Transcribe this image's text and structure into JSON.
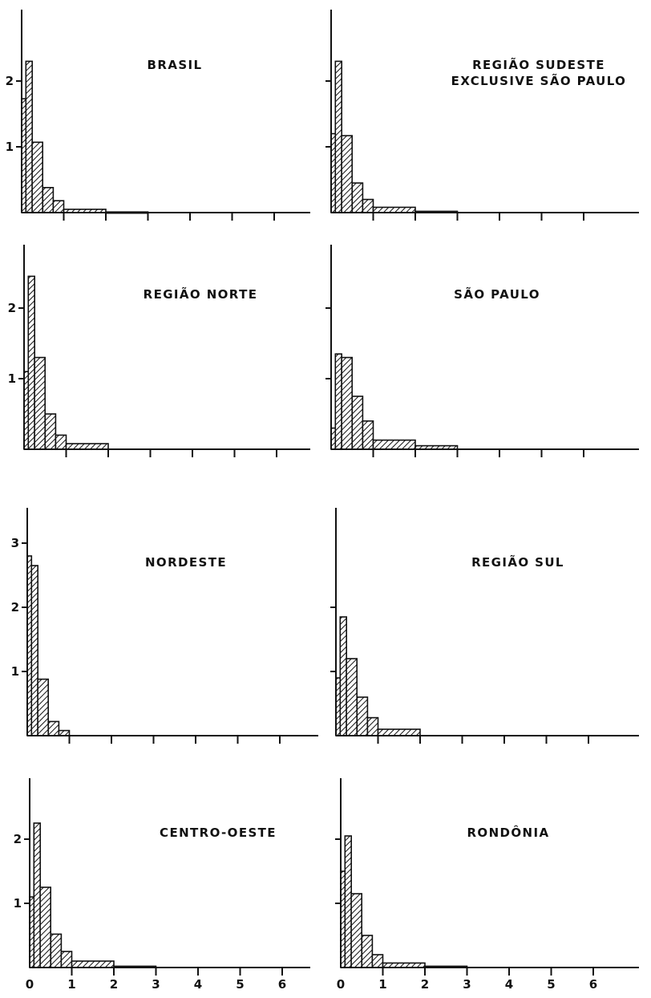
{
  "colors": {
    "ink": "#111111",
    "background": "#ffffff"
  },
  "chart_data": [
    {
      "type": "bar",
      "title_lines": [
        "BRASIL"
      ],
      "xlim": [
        0,
        7
      ],
      "ylim": [
        0,
        2.5
      ],
      "x_ticks": [
        0,
        1,
        2,
        3,
        4,
        5,
        6
      ],
      "x_tick_labels": [],
      "y_ticks": [
        1,
        2
      ],
      "y_tick_labels": [
        "1",
        "2"
      ],
      "bins": [
        {
          "x0": 0.0,
          "x1": 0.1,
          "value": 1.73
        },
        {
          "x0": 0.1,
          "x1": 0.25,
          "value": 2.3
        },
        {
          "x0": 0.25,
          "x1": 0.5,
          "value": 1.07
        },
        {
          "x0": 0.5,
          "x1": 0.75,
          "value": 0.38
        },
        {
          "x0": 0.75,
          "x1": 1.0,
          "value": 0.18
        },
        {
          "x0": 1.0,
          "x1": 2.0,
          "value": 0.05
        },
        {
          "x0": 2.0,
          "x1": 3.0,
          "value": 0.01
        }
      ]
    },
    {
      "type": "bar",
      "title_lines": [
        "REGIÃO SUDESTE",
        "EXCLUSIVE SÃO PAULO"
      ],
      "xlim": [
        0,
        7
      ],
      "ylim": [
        0,
        2.5
      ],
      "x_ticks": [
        0,
        1,
        2,
        3,
        4,
        5,
        6
      ],
      "x_tick_labels": [],
      "y_ticks": [
        1,
        2
      ],
      "y_tick_labels": [],
      "bins": [
        {
          "x0": 0.0,
          "x1": 0.1,
          "value": 1.2
        },
        {
          "x0": 0.1,
          "x1": 0.25,
          "value": 2.3
        },
        {
          "x0": 0.25,
          "x1": 0.5,
          "value": 1.17
        },
        {
          "x0": 0.5,
          "x1": 0.75,
          "value": 0.45
        },
        {
          "x0": 0.75,
          "x1": 1.0,
          "value": 0.2
        },
        {
          "x0": 1.0,
          "x1": 2.0,
          "value": 0.08
        },
        {
          "x0": 2.0,
          "x1": 3.0,
          "value": 0.02
        }
      ]
    },
    {
      "type": "bar",
      "title_lines": [
        "REGIÃO NORTE"
      ],
      "xlim": [
        0,
        7
      ],
      "ylim": [
        0,
        2.7
      ],
      "x_ticks": [
        0,
        1,
        2,
        3,
        4,
        5,
        6
      ],
      "x_tick_labels": [],
      "y_ticks": [
        1,
        2
      ],
      "y_tick_labels": [
        "1",
        "2"
      ],
      "bins": [
        {
          "x0": 0.0,
          "x1": 0.1,
          "value": 1.1
        },
        {
          "x0": 0.1,
          "x1": 0.25,
          "value": 2.45
        },
        {
          "x0": 0.25,
          "x1": 0.5,
          "value": 1.3
        },
        {
          "x0": 0.5,
          "x1": 0.75,
          "value": 0.5
        },
        {
          "x0": 0.75,
          "x1": 1.0,
          "value": 0.2
        },
        {
          "x0": 1.0,
          "x1": 2.0,
          "value": 0.08
        }
      ]
    },
    {
      "type": "bar",
      "title_lines": [
        "SÃO PAULO"
      ],
      "xlim": [
        0,
        7
      ],
      "ylim": [
        0,
        2.7
      ],
      "x_ticks": [
        0,
        1,
        2,
        3,
        4,
        5,
        6
      ],
      "x_tick_labels": [],
      "y_ticks": [
        1,
        2
      ],
      "y_tick_labels": [],
      "bins": [
        {
          "x0": 0.0,
          "x1": 0.1,
          "value": 0.3
        },
        {
          "x0": 0.1,
          "x1": 0.25,
          "value": 1.35
        },
        {
          "x0": 0.25,
          "x1": 0.5,
          "value": 1.3
        },
        {
          "x0": 0.5,
          "x1": 0.75,
          "value": 0.75
        },
        {
          "x0": 0.75,
          "x1": 1.0,
          "value": 0.4
        },
        {
          "x0": 1.0,
          "x1": 2.0,
          "value": 0.13
        },
        {
          "x0": 2.0,
          "x1": 3.0,
          "value": 0.05
        }
      ]
    },
    {
      "type": "bar",
      "title_lines": [
        "NORDESTE"
      ],
      "xlim": [
        0,
        7
      ],
      "ylim": [
        0,
        3.5
      ],
      "x_ticks": [
        0,
        1,
        2,
        3,
        4,
        5,
        6
      ],
      "x_tick_labels": [],
      "y_ticks": [
        1,
        2,
        3
      ],
      "y_tick_labels": [
        "1",
        "2",
        "3"
      ],
      "bins": [
        {
          "x0": 0.0,
          "x1": 0.1,
          "value": 2.8
        },
        {
          "x0": 0.1,
          "x1": 0.25,
          "value": 2.65
        },
        {
          "x0": 0.25,
          "x1": 0.5,
          "value": 0.88
        },
        {
          "x0": 0.5,
          "x1": 0.75,
          "value": 0.22
        },
        {
          "x0": 0.75,
          "x1": 1.0,
          "value": 0.08
        }
      ]
    },
    {
      "type": "bar",
      "title_lines": [
        "REGIÃO SUL"
      ],
      "xlim": [
        0,
        7
      ],
      "ylim": [
        0,
        2.7
      ],
      "x_ticks": [
        0,
        1,
        2,
        3,
        4,
        5,
        6
      ],
      "x_tick_labels": [],
      "y_ticks": [
        1,
        2
      ],
      "y_tick_labels": [],
      "bins": [
        {
          "x0": 0.0,
          "x1": 0.1,
          "value": 0.9
        },
        {
          "x0": 0.1,
          "x1": 0.25,
          "value": 1.85
        },
        {
          "x0": 0.25,
          "x1": 0.5,
          "value": 1.2
        },
        {
          "x0": 0.5,
          "x1": 0.75,
          "value": 0.6
        },
        {
          "x0": 0.75,
          "x1": 1.0,
          "value": 0.28
        },
        {
          "x0": 1.0,
          "x1": 2.0,
          "value": 0.1
        }
      ]
    },
    {
      "type": "bar",
      "title_lines": [
        "CENTRO-OESTE"
      ],
      "xlim": [
        0,
        7
      ],
      "ylim": [
        0,
        2.7
      ],
      "x_ticks": [
        0,
        1,
        2,
        3,
        4,
        5,
        6
      ],
      "x_tick_labels": [
        "0",
        "1",
        "2",
        "3",
        "4",
        "5",
        "6"
      ],
      "y_ticks": [
        1,
        2
      ],
      "y_tick_labels": [
        "1",
        "2"
      ],
      "bins": [
        {
          "x0": 0.0,
          "x1": 0.1,
          "value": 1.1
        },
        {
          "x0": 0.1,
          "x1": 0.25,
          "value": 2.25
        },
        {
          "x0": 0.25,
          "x1": 0.5,
          "value": 1.25
        },
        {
          "x0": 0.5,
          "x1": 0.75,
          "value": 0.52
        },
        {
          "x0": 0.75,
          "x1": 1.0,
          "value": 0.25
        },
        {
          "x0": 1.0,
          "x1": 2.0,
          "value": 0.1
        },
        {
          "x0": 2.0,
          "x1": 3.0,
          "value": 0.02
        }
      ]
    },
    {
      "type": "bar",
      "title_lines": [
        "RONDÔNIA"
      ],
      "xlim": [
        0,
        7
      ],
      "ylim": [
        0,
        2.7
      ],
      "x_ticks": [
        0,
        1,
        2,
        3,
        4,
        5,
        6
      ],
      "x_tick_labels": [
        "0",
        "1",
        "2",
        "3",
        "4",
        "5",
        "6"
      ],
      "y_ticks": [
        1,
        2
      ],
      "y_tick_labels": [],
      "bins": [
        {
          "x0": 0.0,
          "x1": 0.1,
          "value": 1.5
        },
        {
          "x0": 0.1,
          "x1": 0.25,
          "value": 2.05
        },
        {
          "x0": 0.25,
          "x1": 0.5,
          "value": 1.15
        },
        {
          "x0": 0.5,
          "x1": 0.75,
          "value": 0.5
        },
        {
          "x0": 0.75,
          "x1": 1.0,
          "value": 0.2
        },
        {
          "x0": 1.0,
          "x1": 2.0,
          "value": 0.07
        },
        {
          "x0": 2.0,
          "x1": 3.0,
          "value": 0.02
        }
      ]
    }
  ]
}
